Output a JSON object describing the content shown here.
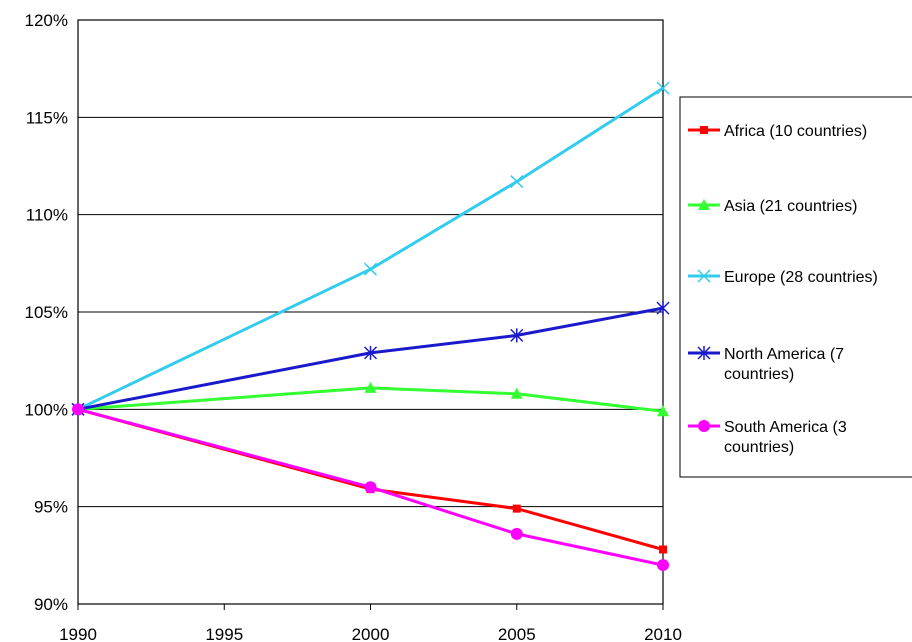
{
  "chart_data": {
    "type": "line",
    "x": [
      1990,
      2000,
      2005,
      2010
    ],
    "xlim": [
      1990,
      2010
    ],
    "xticks": [
      1990,
      1995,
      2000,
      2005,
      2010
    ],
    "xtick_labels": [
      "1990",
      "1995",
      "2000",
      "2005",
      "2010"
    ],
    "ylim": [
      90,
      120
    ],
    "yticks": [
      90,
      95,
      100,
      105,
      110,
      115,
      120
    ],
    "ytick_labels": [
      "90%",
      "95%",
      "100%",
      "105%",
      "110%",
      "115%",
      "120%"
    ],
    "grid": "horizontal",
    "legend_position": "right",
    "series": [
      {
        "name": "Africa (10 countries)",
        "label_lines": [
          "Africa (10 countries)"
        ],
        "color": "#ff0000",
        "marker": "square",
        "values": [
          100,
          95.9,
          94.9,
          92.8
        ]
      },
      {
        "name": "Asia (21 countries)",
        "label_lines": [
          "Asia (21 countries)"
        ],
        "color": "#33ff33",
        "marker": "triangle",
        "values": [
          100,
          101.1,
          100.8,
          99.9
        ]
      },
      {
        "name": "Europe (28 countries)",
        "label_lines": [
          "Europe (28 countries)"
        ],
        "color": "#33ccee",
        "marker": "x",
        "values": [
          100,
          107.2,
          111.7,
          116.5
        ]
      },
      {
        "name": "North America (7 countries)",
        "label_lines": [
          "North America (7",
          "countries)"
        ],
        "color": "#1a1acc",
        "marker": "asterisk",
        "values": [
          100,
          102.9,
          103.8,
          105.2
        ]
      },
      {
        "name": "South America (3 countries)",
        "label_lines": [
          "South America (3",
          "countries)"
        ],
        "color": "#ff00ff",
        "marker": "circle",
        "values": [
          100,
          96.0,
          93.6,
          92.0
        ]
      }
    ]
  }
}
